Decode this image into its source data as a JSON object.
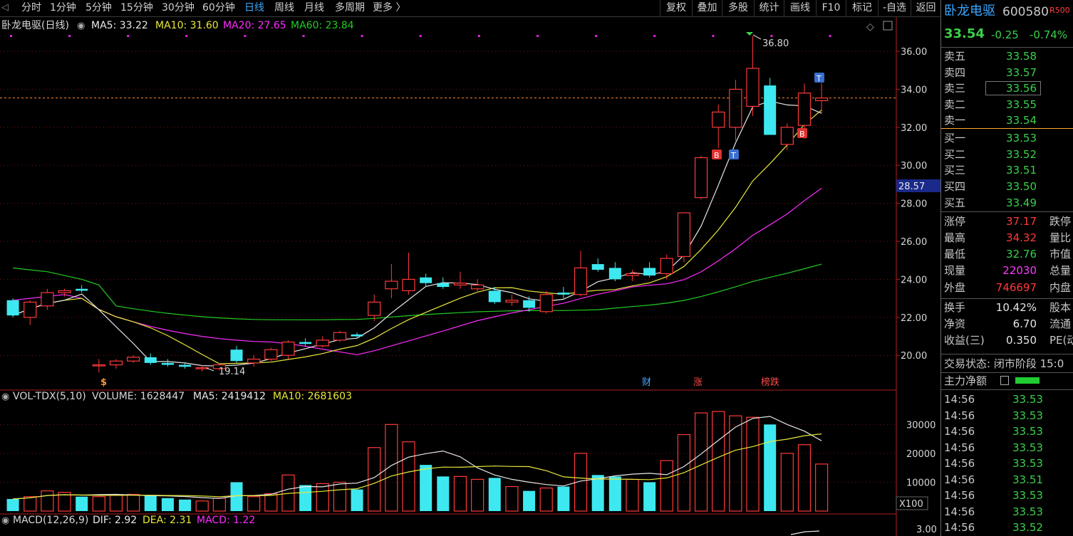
{
  "toolbar": {
    "periods": [
      "分时",
      "1分钟",
      "5分钟",
      "15分钟",
      "30分钟",
      "60分钟",
      "日线",
      "周线",
      "月线",
      "多周期",
      "更多 〉"
    ],
    "active_period": "日线",
    "right_buttons": [
      "复权",
      "叠加",
      "多股",
      "统计",
      "画线",
      "F10",
      "标记",
      "-自选",
      "返回"
    ]
  },
  "stock": {
    "name": "卧龙电驱",
    "code": "600580",
    "tag": "R500",
    "price": "33.54",
    "change": "-0.25",
    "pct": "-0.74%"
  },
  "main_legend": {
    "title": "卧龙电驱(日线)",
    "ma5": "MA5: 33.22",
    "ma10": "MA10: 31.60",
    "ma20": "MA20: 27.65",
    "ma60": "MA60: 23.84"
  },
  "vol_legend": {
    "title": "VOL-TDX(5,10)",
    "volume": "VOLUME: 1628447",
    "ma5": "MA5: 2419412",
    "ma10": "MA10: 2681603"
  },
  "macd_legend": {
    "title": "MACD(12,26,9)",
    "dif": "DIF: 2.92",
    "dea": "DEA: 2.31",
    "macd": "MACD: 1.22"
  },
  "annotations": {
    "high": "36.80",
    "low": "19.14",
    "current_marker": "28.57",
    "x_unit": "X100",
    "macd_tick": "3.00"
  },
  "markers": {
    "buy": "B",
    "sell": "T",
    "dollar": "$",
    "events": [
      "财",
      "涨",
      "榜跌"
    ]
  },
  "colors": {
    "up": "#ff3a3a",
    "down": "#3ee8f0",
    "ma5": "#e8e8e8",
    "ma10": "#e8e83a",
    "ma20": "#ff2cff",
    "ma60": "#22cc22",
    "bg": "#000000"
  },
  "order_book": {
    "asks": [
      {
        "label": "卖五",
        "price": "33.58"
      },
      {
        "label": "卖四",
        "price": "33.57"
      },
      {
        "label": "卖三",
        "price": "33.56"
      },
      {
        "label": "卖二",
        "price": "33.55"
      },
      {
        "label": "卖一",
        "price": "33.54"
      }
    ],
    "bids": [
      {
        "label": "买一",
        "price": "33.53"
      },
      {
        "label": "买二",
        "price": "33.52"
      },
      {
        "label": "买三",
        "price": "33.51"
      },
      {
        "label": "买四",
        "price": "33.50"
      },
      {
        "label": "买五",
        "price": "33.49"
      }
    ]
  },
  "stats": [
    {
      "label": "涨停",
      "value": "37.17",
      "extra": "跌停"
    },
    {
      "label": "最高",
      "value": "34.32",
      "extra": "量比"
    },
    {
      "label": "最低",
      "value": "32.76",
      "extra": "市值"
    },
    {
      "label": "现量",
      "value": "22030",
      "extra": "总量"
    },
    {
      "label": "外盘",
      "value": "746697",
      "extra": "内盘"
    },
    {
      "label": "换手",
      "value": "10.42%",
      "extra": "股本"
    },
    {
      "label": "净资",
      "value": "6.70",
      "extra": "流通"
    },
    {
      "label": "收益(三)",
      "value": "0.350",
      "extra": "PE(动"
    }
  ],
  "status": {
    "text": "交易状态: 闭市阶段 15:0",
    "net_flow_label": "主力净额"
  },
  "ticks": [
    {
      "time": "14:56",
      "price": "33.53"
    },
    {
      "time": "14:56",
      "price": "33.53"
    },
    {
      "time": "14:56",
      "price": "33.53"
    },
    {
      "time": "14:56",
      "price": "33.53"
    },
    {
      "time": "14:56",
      "price": "33.53"
    },
    {
      "time": "14:56",
      "price": "33.51"
    },
    {
      "time": "14:56",
      "price": "33.53"
    },
    {
      "time": "14:56",
      "price": "33.53"
    },
    {
      "time": "14:56",
      "price": "33.52"
    }
  ],
  "chart_data": {
    "type": "candlestick",
    "y_ticks": [
      20,
      22,
      24,
      26,
      28,
      30,
      32,
      34,
      36
    ],
    "ylim": [
      18.2,
      37.6
    ],
    "vol_ticks": [
      10000,
      20000,
      30000
    ],
    "vol_max": 36000,
    "candles": [
      {
        "o": 22.9,
        "h": 23.0,
        "l": 22.0,
        "c": 22.1,
        "v": 4200
      },
      {
        "o": 22.0,
        "h": 22.9,
        "l": 21.6,
        "c": 22.8,
        "v": 5000
      },
      {
        "o": 22.6,
        "h": 23.5,
        "l": 22.4,
        "c": 23.3,
        "v": 7000
      },
      {
        "o": 23.3,
        "h": 23.5,
        "l": 23.1,
        "c": 23.4,
        "v": 6500
      },
      {
        "o": 23.5,
        "h": 23.7,
        "l": 23.3,
        "c": 23.4,
        "v": 5000
      },
      {
        "o": 19.5,
        "h": 19.8,
        "l": 19.1,
        "c": 19.5,
        "v": 5000
      },
      {
        "o": 19.5,
        "h": 19.8,
        "l": 19.3,
        "c": 19.7,
        "v": 5500
      },
      {
        "o": 19.7,
        "h": 20.0,
        "l": 19.6,
        "c": 19.9,
        "v": 5800
      },
      {
        "o": 19.9,
        "h": 20.1,
        "l": 19.5,
        "c": 19.6,
        "v": 5500
      },
      {
        "o": 19.6,
        "h": 19.8,
        "l": 19.4,
        "c": 19.5,
        "v": 4500
      },
      {
        "o": 19.5,
        "h": 19.6,
        "l": 19.3,
        "c": 19.4,
        "v": 4000
      },
      {
        "o": 19.35,
        "h": 19.5,
        "l": 19.14,
        "c": 19.35,
        "v": 3500
      },
      {
        "o": 19.3,
        "h": 19.6,
        "l": 19.2,
        "c": 19.5,
        "v": 4500
      },
      {
        "o": 20.3,
        "h": 20.5,
        "l": 19.6,
        "c": 19.7,
        "v": 10000
      },
      {
        "o": 19.6,
        "h": 20.0,
        "l": 19.4,
        "c": 19.8,
        "v": 5000
      },
      {
        "o": 19.8,
        "h": 20.4,
        "l": 19.7,
        "c": 20.3,
        "v": 6000
      },
      {
        "o": 20.0,
        "h": 20.8,
        "l": 19.8,
        "c": 20.7,
        "v": 12500
      },
      {
        "o": 20.7,
        "h": 20.9,
        "l": 20.5,
        "c": 20.6,
        "v": 9000
      },
      {
        "o": 20.5,
        "h": 21.0,
        "l": 20.4,
        "c": 20.8,
        "v": 9500
      },
      {
        "o": 20.8,
        "h": 21.3,
        "l": 20.7,
        "c": 21.2,
        "v": 10000
      },
      {
        "o": 21.1,
        "h": 21.2,
        "l": 20.9,
        "c": 21.0,
        "v": 7500
      },
      {
        "o": 22.1,
        "h": 23.2,
        "l": 21.8,
        "c": 22.8,
        "v": 22000
      },
      {
        "o": 23.5,
        "h": 24.8,
        "l": 23.0,
        "c": 23.9,
        "v": 30000
      },
      {
        "o": 23.4,
        "h": 25.4,
        "l": 23.2,
        "c": 24.0,
        "v": 24000
      },
      {
        "o": 24.1,
        "h": 24.3,
        "l": 23.6,
        "c": 23.8,
        "v": 16000
      },
      {
        "o": 23.8,
        "h": 24.1,
        "l": 23.5,
        "c": 23.6,
        "v": 12000
      },
      {
        "o": 23.7,
        "h": 24.4,
        "l": 23.5,
        "c": 23.8,
        "v": 12000
      },
      {
        "o": 23.5,
        "h": 24.0,
        "l": 23.3,
        "c": 23.7,
        "v": 11000
      },
      {
        "o": 23.4,
        "h": 23.6,
        "l": 22.7,
        "c": 22.8,
        "v": 11500
      },
      {
        "o": 22.8,
        "h": 23.2,
        "l": 22.6,
        "c": 22.9,
        "v": 8500
      },
      {
        "o": 22.9,
        "h": 23.1,
        "l": 22.3,
        "c": 22.5,
        "v": 7000
      },
      {
        "o": 22.3,
        "h": 23.4,
        "l": 22.2,
        "c": 23.2,
        "v": 8000
      },
      {
        "o": 23.3,
        "h": 23.6,
        "l": 23.0,
        "c": 23.2,
        "v": 8500
      },
      {
        "o": 23.2,
        "h": 25.5,
        "l": 23.1,
        "c": 24.6,
        "v": 20000
      },
      {
        "o": 24.8,
        "h": 25.1,
        "l": 24.4,
        "c": 24.5,
        "v": 12500
      },
      {
        "o": 24.6,
        "h": 24.9,
        "l": 23.9,
        "c": 24.0,
        "v": 12000
      },
      {
        "o": 24.2,
        "h": 24.5,
        "l": 23.9,
        "c": 24.3,
        "v": 11000
      },
      {
        "o": 24.6,
        "h": 24.9,
        "l": 24.1,
        "c": 24.2,
        "v": 10000
      },
      {
        "o": 24.3,
        "h": 25.3,
        "l": 24.0,
        "c": 25.1,
        "v": 17500
      },
      {
        "o": 25.2,
        "h": 27.5,
        "l": 24.9,
        "c": 27.5,
        "v": 26500
      },
      {
        "o": 28.3,
        "h": 30.5,
        "l": 28.2,
        "c": 30.4,
        "v": 34000
      },
      {
        "o": 32.0,
        "h": 33.2,
        "l": 30.9,
        "c": 32.8,
        "v": 34500
      },
      {
        "o": 32.0,
        "h": 34.5,
        "l": 31.3,
        "c": 34.0,
        "v": 33000
      },
      {
        "o": 33.1,
        "h": 36.8,
        "l": 32.6,
        "c": 35.1,
        "v": 32500
      },
      {
        "o": 34.2,
        "h": 34.6,
        "l": 31.6,
        "c": 31.6,
        "v": 30000
      },
      {
        "o": 31.1,
        "h": 32.2,
        "l": 30.8,
        "c": 32.0,
        "v": 20000
      },
      {
        "o": 32.1,
        "h": 34.3,
        "l": 31.4,
        "c": 33.8,
        "v": 23000
      },
      {
        "o": 33.4,
        "h": 34.32,
        "l": 32.76,
        "c": 33.54,
        "v": 16300
      }
    ]
  }
}
